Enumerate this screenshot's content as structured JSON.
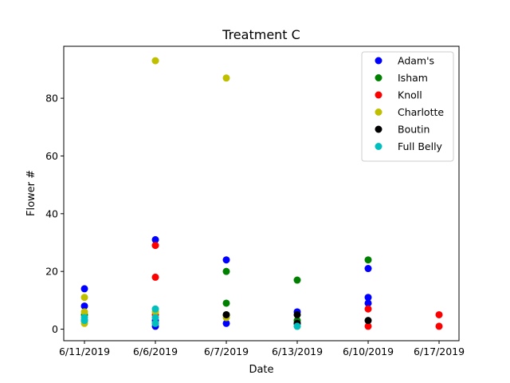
{
  "chart_data": {
    "type": "scatter",
    "title": "Treatment C",
    "xlabel": "Date",
    "ylabel": "Flower #",
    "categories": [
      "6/11/2019",
      "6/6/2019",
      "6/7/2019",
      "6/13/2019",
      "6/10/2019",
      "6/17/2019"
    ],
    "ylim": [
      -4,
      98
    ],
    "yticks": [
      0,
      20,
      40,
      60,
      80
    ],
    "grid": false,
    "legend_position": "top-right",
    "series": [
      {
        "name": "Adam's",
        "color": "#0000ff",
        "points": [
          {
            "x": "6/11/2019",
            "y": 14
          },
          {
            "x": "6/11/2019",
            "y": 8
          },
          {
            "x": "6/11/2019",
            "y": 3
          },
          {
            "x": "6/6/2019",
            "y": 31
          },
          {
            "x": "6/6/2019",
            "y": 3
          },
          {
            "x": "6/6/2019",
            "y": 1
          },
          {
            "x": "6/7/2019",
            "y": 24
          },
          {
            "x": "6/7/2019",
            "y": 2
          },
          {
            "x": "6/13/2019",
            "y": 6
          },
          {
            "x": "6/13/2019",
            "y": 2
          },
          {
            "x": "6/10/2019",
            "y": 21
          },
          {
            "x": "6/10/2019",
            "y": 11
          },
          {
            "x": "6/10/2019",
            "y": 9
          }
        ]
      },
      {
        "name": "Isham",
        "color": "#008000",
        "points": [
          {
            "x": "6/11/2019",
            "y": 5
          },
          {
            "x": "6/6/2019",
            "y": 2
          },
          {
            "x": "6/7/2019",
            "y": 20
          },
          {
            "x": "6/7/2019",
            "y": 9
          },
          {
            "x": "6/7/2019",
            "y": 5
          },
          {
            "x": "6/13/2019",
            "y": 17
          },
          {
            "x": "6/13/2019",
            "y": 3
          },
          {
            "x": "6/10/2019",
            "y": 24
          }
        ]
      },
      {
        "name": "Knoll",
        "color": "#ff0000",
        "points": [
          {
            "x": "6/6/2019",
            "y": 29
          },
          {
            "x": "6/6/2019",
            "y": 18
          },
          {
            "x": "6/6/2019",
            "y": 5
          },
          {
            "x": "6/10/2019",
            "y": 7
          },
          {
            "x": "6/10/2019",
            "y": 1
          },
          {
            "x": "6/17/2019",
            "y": 5
          },
          {
            "x": "6/17/2019",
            "y": 1
          }
        ]
      },
      {
        "name": "Charlotte",
        "color": "#bfbf00",
        "points": [
          {
            "x": "6/11/2019",
            "y": 11
          },
          {
            "x": "6/11/2019",
            "y": 6
          },
          {
            "x": "6/11/2019",
            "y": 2
          },
          {
            "x": "6/6/2019",
            "y": 93
          },
          {
            "x": "6/6/2019",
            "y": 6
          },
          {
            "x": "6/7/2019",
            "y": 87
          },
          {
            "x": "6/7/2019",
            "y": 4
          },
          {
            "x": "6/13/2019",
            "y": 1
          }
        ]
      },
      {
        "name": "Boutin",
        "color": "#000000",
        "points": [
          {
            "x": "6/7/2019",
            "y": 5
          },
          {
            "x": "6/13/2019",
            "y": 5
          },
          {
            "x": "6/13/2019",
            "y": 2
          },
          {
            "x": "6/10/2019",
            "y": 3
          }
        ]
      },
      {
        "name": "Full Belly",
        "color": "#00bfbf",
        "points": [
          {
            "x": "6/11/2019",
            "y": 4
          },
          {
            "x": "6/11/2019",
            "y": 3
          },
          {
            "x": "6/6/2019",
            "y": 7
          },
          {
            "x": "6/6/2019",
            "y": 4
          },
          {
            "x": "6/6/2019",
            "y": 2
          },
          {
            "x": "6/13/2019",
            "y": 1
          }
        ]
      }
    ]
  }
}
